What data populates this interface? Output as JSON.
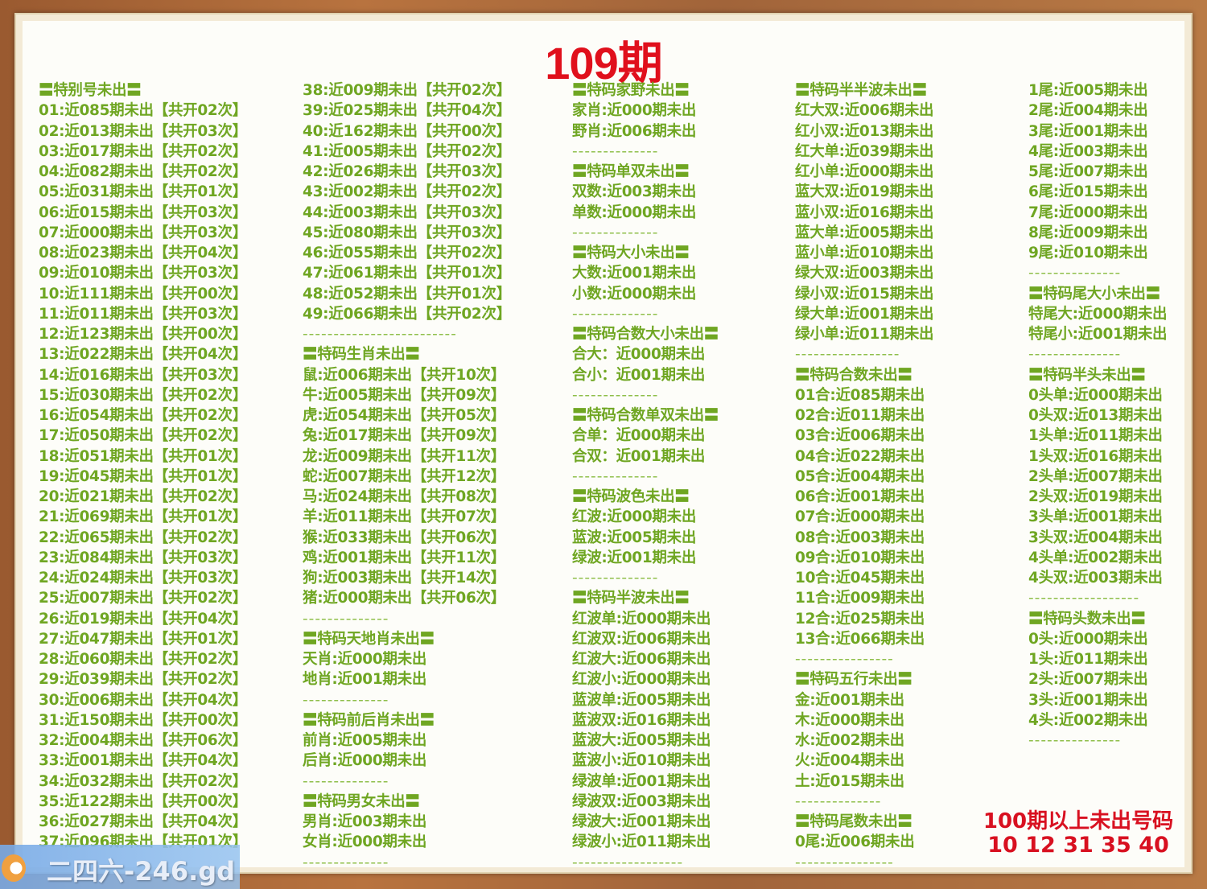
{
  "title": "109期",
  "colors": {
    "text_green": "#6fa622",
    "title_red": "#e0101c",
    "frame_wood": "#a8683a"
  },
  "columns": [
    [
      "〓特别号未出〓",
      "01:近085期未出【共开02次】",
      "02:近013期未出【共开03次】",
      "03:近017期未出【共开02次】",
      "04:近082期未出【共开02次】",
      "05:近031期未出【共开01次】",
      "06:近015期未出【共开03次】",
      "07:近000期未出【共开03次】",
      "08:近023期未出【共开04次】",
      "09:近010期未出【共开03次】",
      "10:近111期未出【共开00次】",
      "11:近011期未出【共开03次】",
      "12:近123期未出【共开00次】",
      "13:近022期未出【共开04次】",
      "14:近016期未出【共开03次】",
      "15:近030期未出【共开02次】",
      "16:近054期未出【共开02次】",
      "17:近050期未出【共开02次】",
      "18:近051期未出【共开01次】",
      "19:近045期未出【共开01次】",
      "20:近021期未出【共开02次】",
      "21:近069期未出【共开01次】",
      "22:近065期未出【共开02次】",
      "23:近084期未出【共开03次】",
      "24:近024期未出【共开03次】",
      "25:近007期未出【共开02次】",
      "26:近019期未出【共开04次】",
      "27:近047期未出【共开01次】",
      "28:近060期未出【共开02次】",
      "29:近039期未出【共开02次】",
      "30:近006期未出【共开04次】",
      "31:近150期未出【共开00次】",
      "32:近004期未出【共开06次】",
      "33:近001期未出【共开04次】",
      "34:近032期未出【共开02次】",
      "35:近122期未出【共开00次】",
      "36:近027期未出【共开04次】",
      "37:近096期未出【共开01次】"
    ],
    [
      "38:近009期未出【共开02次】",
      "39:近025期未出【共开04次】",
      "40:近162期未出【共开00次】",
      "41:近005期未出【共开02次】",
      "42:近026期未出【共开03次】",
      "43:近002期未出【共开02次】",
      "44:近003期未出【共开03次】",
      "45:近080期未出【共开03次】",
      "46:近055期未出【共开02次】",
      "47:近061期未出【共开01次】",
      "48:近052期未出【共开01次】",
      "49:近066期未出【共开02次】",
      "-------------------------",
      "〓特码生肖未出〓",
      "鼠:近006期未出【共开10次】",
      "牛:近005期未出【共开09次】",
      "虎:近054期未出【共开05次】",
      "兔:近017期未出【共开09次】",
      "龙:近009期未出【共开11次】",
      "蛇:近007期未出【共开12次】",
      "马:近024期未出【共开08次】",
      "羊:近011期未出【共开07次】",
      "猴:近033期未出【共开06次】",
      "鸡:近001期未出【共开11次】",
      "狗:近003期未出【共开14次】",
      "猪:近000期未出【共开06次】",
      "--------------",
      "〓特码天地肖未出〓",
      "天肖:近000期未出",
      "地肖:近001期未出",
      "--------------",
      "〓特码前后肖未出〓",
      "前肖:近005期未出",
      "后肖:近000期未出",
      "--------------",
      "〓特码男女未出〓",
      "男肖:近003期未出",
      "女肖:近000期未出",
      "--------------"
    ],
    [
      "〓特码家野未出〓",
      "家肖:近000期未出",
      "野肖:近006期未出",
      "--------------",
      "〓特码单双未出〓",
      "双数:近003期未出",
      "单数:近000期未出",
      "--------------",
      "〓特码大小未出〓",
      "大数:近001期未出",
      "小数:近000期未出",
      "--------------",
      "〓特码合数大小未出〓",
      "合大：近000期未出",
      "合小：近001期未出",
      "--------------",
      "〓特码合数单双未出〓",
      "合单：近000期未出",
      "合双：近001期未出",
      "--------------",
      "〓特码波色未出〓",
      "红波:近000期未出",
      "蓝波:近005期未出",
      "绿波:近001期未出",
      "--------------",
      "〓特码半波未出〓",
      "红波单:近000期未出",
      "红波双:近006期未出",
      "红波大:近006期未出",
      "红波小:近000期未出",
      "蓝波单:近005期未出",
      "蓝波双:近016期未出",
      "蓝波大:近005期未出",
      "蓝波小:近010期未出",
      "绿波单:近001期未出",
      "绿波双:近003期未出",
      "绿波大:近001期未出",
      "绿波小:近011期未出",
      "------------------"
    ],
    [
      "〓特码半半波未出〓",
      "红大双:近006期未出",
      "红小双:近013期未出",
      "红大单:近039期未出",
      "红小单:近000期未出",
      "蓝大双:近019期未出",
      "蓝小双:近016期未出",
      "蓝大单:近005期未出",
      "蓝小单:近010期未出",
      "绿大双:近003期未出",
      "绿小双:近015期未出",
      "绿大单:近001期未出",
      "绿小单:近011期未出",
      "-----------------",
      "〓特码合数未出〓",
      "01合:近085期未出",
      "02合:近011期未出",
      "03合:近006期未出",
      "04合:近022期未出",
      "05合:近004期未出",
      "06合:近001期未出",
      "07合:近000期未出",
      "08合:近003期未出",
      "09合:近010期未出",
      "10合:近045期未出",
      "11合:近009期未出",
      "12合:近025期未出",
      "13合:近066期未出",
      "----------------",
      "〓特码五行未出〓",
      "金:近001期未出",
      "木:近000期未出",
      "水:近002期未出",
      "火:近004期未出",
      "土:近015期未出",
      "--------------",
      "〓特码尾数未出〓",
      "0尾:近006期未出",
      "----------------"
    ],
    [
      "1尾:近005期未出",
      "2尾:近004期未出",
      "3尾:近001期未出",
      "4尾:近003期未出",
      "5尾:近007期未出",
      "6尾:近015期未出",
      "7尾:近000期未出",
      "8尾:近009期未出",
      "9尾:近010期未出",
      "---------------",
      "〓特码尾大小未出〓",
      "特尾大:近000期未出",
      "特尾小:近001期未出",
      "---------------",
      "〓特码半头未出〓",
      "0头单:近000期未出",
      "0头双:近013期未出",
      "1头单:近011期未出",
      "1头双:近016期未出",
      "2头单:近007期未出",
      "2头双:近019期未出",
      "3头单:近001期未出",
      "3头双:近004期未出",
      "4头单:近002期未出",
      "4头双:近003期未出",
      "------------------",
      "〓特码头数未出〓",
      "0头:近000期未出",
      "1头:近011期未出",
      "2头:近007期未出",
      "3头:近001期未出",
      "4头:近002期未出",
      "---------------"
    ]
  ],
  "over100": {
    "label": "100期以上未出号码",
    "numbers": "10 12 31 35 40"
  },
  "watermark": {
    "text": "二四六-246.gd"
  }
}
